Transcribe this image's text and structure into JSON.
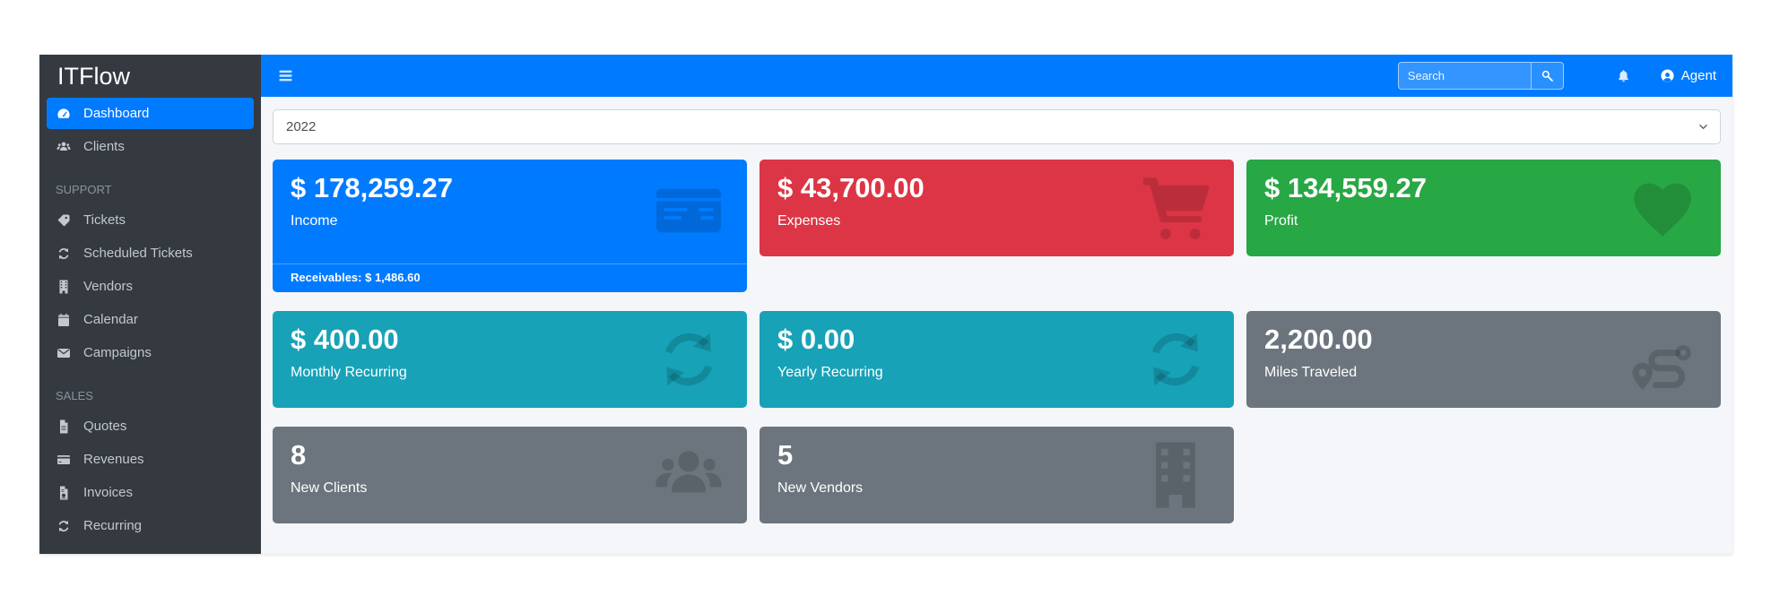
{
  "app": {
    "brand": "ITFlow"
  },
  "navbar": {
    "search_placeholder": "Search",
    "user_label": "Agent"
  },
  "filter": {
    "year_selected": "2022"
  },
  "sidebar": {
    "groups": [
      {
        "header": "",
        "items": [
          {
            "label": "Dashboard",
            "icon": "tachometer-icon",
            "active": true
          },
          {
            "label": "Clients",
            "icon": "users-icon",
            "active": false
          }
        ]
      },
      {
        "header": "SUPPORT",
        "items": [
          {
            "label": "Tickets",
            "icon": "tag-icon",
            "active": false
          },
          {
            "label": "Scheduled Tickets",
            "icon": "sync-icon",
            "active": false
          },
          {
            "label": "Vendors",
            "icon": "building-icon",
            "active": false
          },
          {
            "label": "Calendar",
            "icon": "calendar-icon",
            "active": false
          },
          {
            "label": "Campaigns",
            "icon": "envelope-icon",
            "active": false
          }
        ]
      },
      {
        "header": "SALES",
        "items": [
          {
            "label": "Quotes",
            "icon": "file-icon",
            "active": false
          },
          {
            "label": "Revenues",
            "icon": "credit-card-icon",
            "active": false
          },
          {
            "label": "Invoices",
            "icon": "file-invoice-icon",
            "active": false
          },
          {
            "label": "Recurring",
            "icon": "sync-icon",
            "active": false
          }
        ]
      }
    ]
  },
  "cards": [
    {
      "value": "$ 178,259.27",
      "label": "Income",
      "icon": "money-check-icon",
      "color": "#007bff",
      "footer": "Receivables: $ 1,486.60"
    },
    {
      "value": "$ 43,700.00",
      "label": "Expenses",
      "icon": "shopping-cart-icon",
      "color": "#dc3545"
    },
    {
      "value": "$ 134,559.27",
      "label": "Profit",
      "icon": "heart-icon",
      "color": "#28a745"
    },
    {
      "value": "$ 400.00",
      "label": "Monthly Recurring",
      "icon": "sync-icon",
      "color": "#17a2b8"
    },
    {
      "value": "$ 0.00",
      "label": "Yearly Recurring",
      "icon": "sync-icon",
      "color": "#17a2b8"
    },
    {
      "value": "2,200.00",
      "label": "Miles Traveled",
      "icon": "route-icon",
      "color": "#6c757d"
    },
    {
      "value": "8",
      "label": "New Clients",
      "icon": "users-icon",
      "color": "#6c757d"
    },
    {
      "value": "5",
      "label": "New Vendors",
      "icon": "building-icon",
      "color": "#6c757d"
    }
  ],
  "colors": {
    "navbar": "#007bff",
    "sidebar": "#343a40",
    "active_item": "#007bff",
    "content_bg": "#f4f6f9",
    "danger": "#dc3545",
    "success": "#28a745",
    "info": "#17a2b8",
    "secondary": "#6c757d"
  }
}
